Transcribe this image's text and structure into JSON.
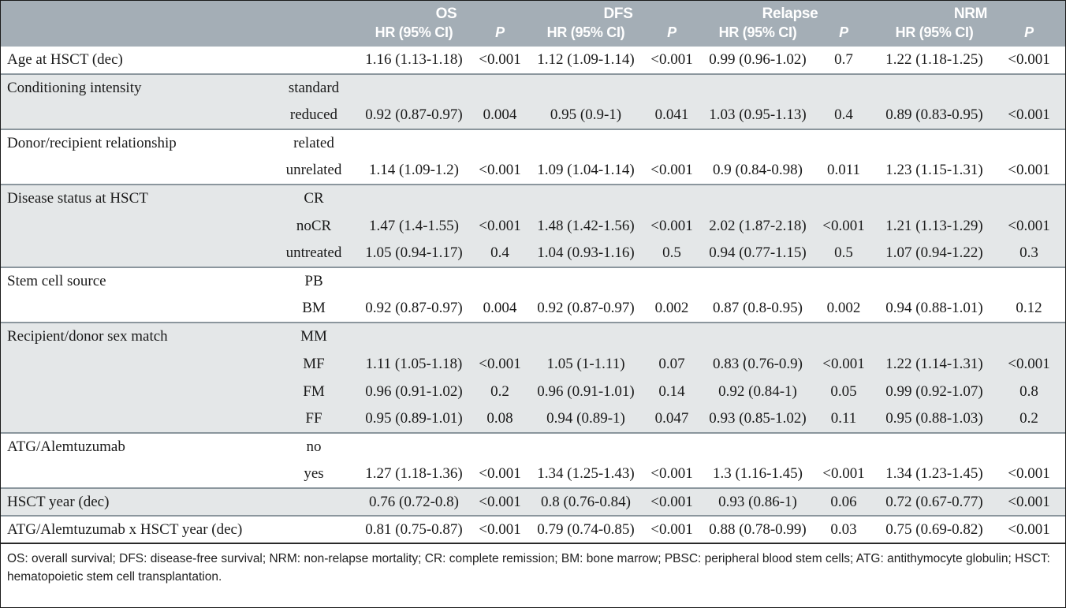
{
  "colors": {
    "header_bg": "#a4aeb6",
    "stripe": "#e4e7e8",
    "separator": "#8b969d",
    "line": "#2a2a2a"
  },
  "header": {
    "groups": [
      "OS",
      "DFS",
      "Relapse",
      "NRM"
    ],
    "hr_label": "HR (95% CI)",
    "p_label": "P"
  },
  "rows": [
    {
      "variable": "Age at HSCT (dec)",
      "level": "",
      "os_hr": "1.16 (1.13-1.18)",
      "os_p": "<0.001",
      "dfs_hr": "1.12 (1.09-1.14)",
      "dfs_p": "<0.001",
      "relapse_hr": "0.99 (0.96-1.02)",
      "relapse_p": "0.7",
      "nrm_hr": "1.22 (1.18-1.25)",
      "nrm_p": "<0.001",
      "shaded": false,
      "group_start": false
    },
    {
      "variable": "Conditioning intensity",
      "level": "standard",
      "os_hr": "",
      "os_p": "",
      "dfs_hr": "",
      "dfs_p": "",
      "relapse_hr": "",
      "relapse_p": "",
      "nrm_hr": "",
      "nrm_p": "",
      "shaded": true,
      "group_start": true
    },
    {
      "variable": "",
      "level": "reduced",
      "os_hr": "0.92 (0.87-0.97)",
      "os_p": "0.004",
      "dfs_hr": "0.95 (0.9-1)",
      "dfs_p": "0.041",
      "relapse_hr": "1.03 (0.95-1.13)",
      "relapse_p": "0.4",
      "nrm_hr": "0.89 (0.83-0.95)",
      "nrm_p": "<0.001",
      "shaded": true,
      "group_start": false
    },
    {
      "variable": "Donor/recipient relationship",
      "level": "related",
      "os_hr": "",
      "os_p": "",
      "dfs_hr": "",
      "dfs_p": "",
      "relapse_hr": "",
      "relapse_p": "",
      "nrm_hr": "",
      "nrm_p": "",
      "shaded": false,
      "group_start": true
    },
    {
      "variable": "",
      "level": "unrelated",
      "os_hr": "1.14 (1.09-1.2)",
      "os_p": "<0.001",
      "dfs_hr": "1.09 (1.04-1.14)",
      "dfs_p": "<0.001",
      "relapse_hr": "0.9 (0.84-0.98)",
      "relapse_p": "0.011",
      "nrm_hr": "1.23 (1.15-1.31)",
      "nrm_p": "<0.001",
      "shaded": false,
      "group_start": false
    },
    {
      "variable": "Disease status at HSCT",
      "level": "CR",
      "os_hr": "",
      "os_p": "",
      "dfs_hr": "",
      "dfs_p": "",
      "relapse_hr": "",
      "relapse_p": "",
      "nrm_hr": "",
      "nrm_p": "",
      "shaded": true,
      "group_start": true
    },
    {
      "variable": "",
      "level": "noCR",
      "os_hr": "1.47 (1.4-1.55)",
      "os_p": "<0.001",
      "dfs_hr": "1.48 (1.42-1.56)",
      "dfs_p": "<0.001",
      "relapse_hr": "2.02 (1.87-2.18)",
      "relapse_p": "<0.001",
      "nrm_hr": "1.21 (1.13-1.29)",
      "nrm_p": "<0.001",
      "shaded": true,
      "group_start": false
    },
    {
      "variable": "",
      "level": "untreated",
      "os_hr": "1.05 (0.94-1.17)",
      "os_p": "0.4",
      "dfs_hr": "1.04 (0.93-1.16)",
      "dfs_p": "0.5",
      "relapse_hr": "0.94 (0.77-1.15)",
      "relapse_p": "0.5",
      "nrm_hr": "1.07 (0.94-1.22)",
      "nrm_p": "0.3",
      "shaded": true,
      "group_start": false
    },
    {
      "variable": "Stem cell source",
      "level": "PB",
      "os_hr": "",
      "os_p": "",
      "dfs_hr": "",
      "dfs_p": "",
      "relapse_hr": "",
      "relapse_p": "",
      "nrm_hr": "",
      "nrm_p": "",
      "shaded": false,
      "group_start": true
    },
    {
      "variable": "",
      "level": "BM",
      "os_hr": "0.92 (0.87-0.97)",
      "os_p": "0.004",
      "dfs_hr": "0.92 (0.87-0.97)",
      "dfs_p": "0.002",
      "relapse_hr": "0.87 (0.8-0.95)",
      "relapse_p": "0.002",
      "nrm_hr": "0.94 (0.88-1.01)",
      "nrm_p": "0.12",
      "shaded": false,
      "group_start": false
    },
    {
      "variable": "Recipient/donor sex match",
      "level": "MM",
      "os_hr": "",
      "os_p": "",
      "dfs_hr": "",
      "dfs_p": "",
      "relapse_hr": "",
      "relapse_p": "",
      "nrm_hr": "",
      "nrm_p": "",
      "shaded": true,
      "group_start": true
    },
    {
      "variable": "",
      "level": "MF",
      "os_hr": "1.11 (1.05-1.18)",
      "os_p": "<0.001",
      "dfs_hr": "1.05 (1-1.11)",
      "dfs_p": "0.07",
      "relapse_hr": "0.83 (0.76-0.9)",
      "relapse_p": "<0.001",
      "nrm_hr": "1.22 (1.14-1.31)",
      "nrm_p": "<0.001",
      "shaded": true,
      "group_start": false
    },
    {
      "variable": "",
      "level": "FM",
      "os_hr": "0.96 (0.91-1.02)",
      "os_p": "0.2",
      "dfs_hr": "0.96 (0.91-1.01)",
      "dfs_p": "0.14",
      "relapse_hr": "0.92 (0.84-1)",
      "relapse_p": "0.05",
      "nrm_hr": "0.99 (0.92-1.07)",
      "nrm_p": "0.8",
      "shaded": true,
      "group_start": false
    },
    {
      "variable": "",
      "level": "FF",
      "os_hr": "0.95 (0.89-1.01)",
      "os_p": "0.08",
      "dfs_hr": "0.94 (0.89-1)",
      "dfs_p": "0.047",
      "relapse_hr": "0.93 (0.85-1.02)",
      "relapse_p": "0.11",
      "nrm_hr": "0.95 (0.88-1.03)",
      "nrm_p": "0.2",
      "shaded": true,
      "group_start": false
    },
    {
      "variable": "ATG/Alemtuzumab",
      "level": "no",
      "os_hr": "",
      "os_p": "",
      "dfs_hr": "",
      "dfs_p": "",
      "relapse_hr": "",
      "relapse_p": "",
      "nrm_hr": "",
      "nrm_p": "",
      "shaded": false,
      "group_start": true
    },
    {
      "variable": "",
      "level": "yes",
      "os_hr": "1.27 (1.18-1.36)",
      "os_p": "<0.001",
      "dfs_hr": "1.34 (1.25-1.43)",
      "dfs_p": "<0.001",
      "relapse_hr": "1.3 (1.16-1.45)",
      "relapse_p": "<0.001",
      "nrm_hr": "1.34 (1.23-1.45)",
      "nrm_p": "<0.001",
      "shaded": false,
      "group_start": false
    },
    {
      "variable": "HSCT year (dec)",
      "level": "",
      "os_hr": "0.76 (0.72-0.8)",
      "os_p": "<0.001",
      "dfs_hr": "0.8 (0.76-0.84)",
      "dfs_p": "<0.001",
      "relapse_hr": "0.93 (0.86-1)",
      "relapse_p": "0.06",
      "nrm_hr": "0.72 (0.67-0.77)",
      "nrm_p": "<0.001",
      "shaded": true,
      "group_start": true
    },
    {
      "variable": "ATG/Alemtuzumab x HSCT year (dec)",
      "level": "",
      "os_hr": "0.81 (0.75-0.87)",
      "os_p": "<0.001",
      "dfs_hr": "0.79 (0.74-0.85)",
      "dfs_p": "<0.001",
      "relapse_hr": "0.88 (0.78-0.99)",
      "relapse_p": "0.03",
      "nrm_hr": "0.75 (0.69-0.82)",
      "nrm_p": "<0.001",
      "shaded": false,
      "group_start": true
    }
  ],
  "footnote": "OS: overall survival; DFS: disease-free survival; NRM: non-relapse mortality; CR: complete remission; BM: bone marrow; PBSC: peripheral blood stem cells; ATG: antithymocyte globulin; HSCT: hematopoietic stem cell transplantation."
}
